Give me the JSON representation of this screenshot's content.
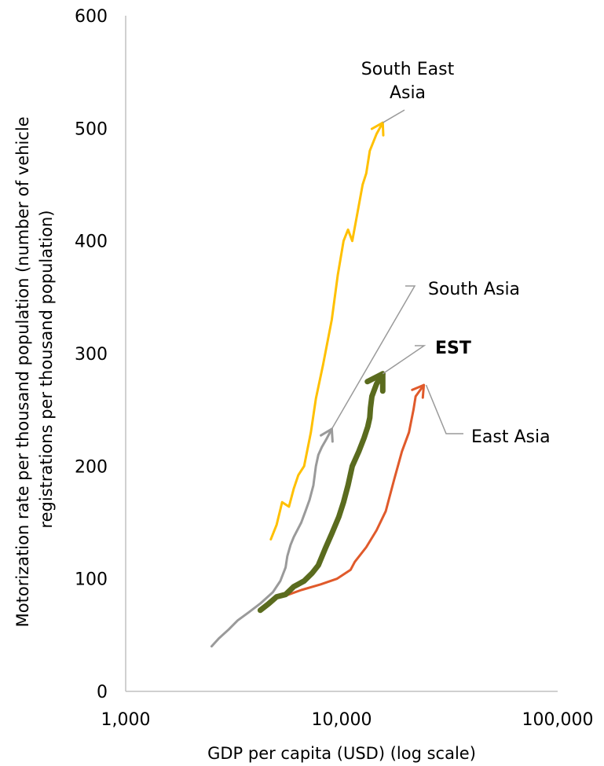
{
  "chart_data": {
    "type": "line",
    "title": "",
    "xlabel": "GDP per capita (USD) (log scale)",
    "ylabel_lines": [
      "Motorization rate per thousand population (number of vehicle",
      "registrations per thousand population)"
    ],
    "x_scale": "log",
    "xlim": [
      1000,
      100000
    ],
    "ylim": [
      0,
      600
    ],
    "x_ticks": [
      1000,
      10000,
      100000
    ],
    "x_tick_labels": [
      "1,000",
      "10,000",
      "100,000"
    ],
    "y_ticks": [
      0,
      100,
      200,
      300,
      400,
      500,
      600
    ],
    "y_tick_labels": [
      "0",
      "100",
      "200",
      "300",
      "400",
      "500",
      "600"
    ],
    "grid": false,
    "legend": "none",
    "series": [
      {
        "name": "South Asia",
        "color": "#9a9a9a",
        "width": 3,
        "points": [
          [
            2500,
            40
          ],
          [
            2700,
            47
          ],
          [
            3000,
            55
          ],
          [
            3300,
            63
          ],
          [
            3700,
            70
          ],
          [
            4200,
            78
          ],
          [
            4800,
            88
          ],
          [
            5200,
            98
          ],
          [
            5500,
            110
          ],
          [
            5600,
            120
          ],
          [
            5800,
            130
          ],
          [
            6000,
            137
          ],
          [
            6500,
            150
          ],
          [
            6800,
            160
          ],
          [
            7100,
            170
          ],
          [
            7400,
            183
          ],
          [
            7600,
            200
          ],
          [
            7800,
            210
          ],
          [
            8100,
            217
          ],
          [
            8500,
            224
          ],
          [
            9000,
            233
          ]
        ]
      },
      {
        "name": "South East Asia",
        "color": "#ffc000",
        "width": 3,
        "points": [
          [
            4700,
            135
          ],
          [
            5000,
            148
          ],
          [
            5300,
            168
          ],
          [
            5700,
            164
          ],
          [
            6000,
            180
          ],
          [
            6300,
            192
          ],
          [
            6700,
            200
          ],
          [
            7200,
            230
          ],
          [
            7600,
            260
          ],
          [
            8200,
            290
          ],
          [
            9000,
            330
          ],
          [
            9600,
            370
          ],
          [
            10200,
            400
          ],
          [
            10700,
            410
          ],
          [
            11200,
            400
          ],
          [
            11700,
            420
          ],
          [
            12500,
            450
          ],
          [
            13000,
            460
          ],
          [
            13500,
            480
          ],
          [
            14500,
            495
          ],
          [
            15500,
            505
          ]
        ]
      },
      {
        "name": "East Asia",
        "color": "#e05a2b",
        "width": 3,
        "points": [
          [
            5500,
            85
          ],
          [
            6500,
            90
          ],
          [
            8000,
            95
          ],
          [
            9500,
            100
          ],
          [
            11000,
            108
          ],
          [
            11500,
            115
          ],
          [
            13000,
            128
          ],
          [
            14500,
            143
          ],
          [
            16000,
            160
          ],
          [
            17500,
            188
          ],
          [
            19000,
            213
          ],
          [
            20500,
            230
          ],
          [
            21500,
            250
          ],
          [
            22000,
            262
          ],
          [
            24000,
            272
          ]
        ]
      },
      {
        "name": "EST",
        "color": "#5a6b1e",
        "width": 7,
        "points": [
          [
            4200,
            72
          ],
          [
            4600,
            78
          ],
          [
            5000,
            84
          ],
          [
            5500,
            86
          ],
          [
            6000,
            93
          ],
          [
            6700,
            98
          ],
          [
            7300,
            105
          ],
          [
            7800,
            112
          ],
          [
            8400,
            127
          ],
          [
            9000,
            140
          ],
          [
            9700,
            155
          ],
          [
            10200,
            168
          ],
          [
            10700,
            183
          ],
          [
            11200,
            200
          ],
          [
            12000,
            213
          ],
          [
            12700,
            225
          ],
          [
            13200,
            235
          ],
          [
            13500,
            243
          ],
          [
            13600,
            252
          ],
          [
            13800,
            262
          ],
          [
            14500,
            273
          ],
          [
            15500,
            282
          ]
        ]
      }
    ],
    "annotations": [
      {
        "series": "South East Asia",
        "lines": [
          "South East",
          "Asia"
        ],
        "bold": false
      },
      {
        "series": "South Asia",
        "lines": [
          "South Asia"
        ],
        "bold": false
      },
      {
        "series": "EST",
        "lines": [
          "EST"
        ],
        "bold": true
      },
      {
        "series": "East Asia",
        "lines": [
          "East Asia"
        ],
        "bold": false
      }
    ]
  }
}
